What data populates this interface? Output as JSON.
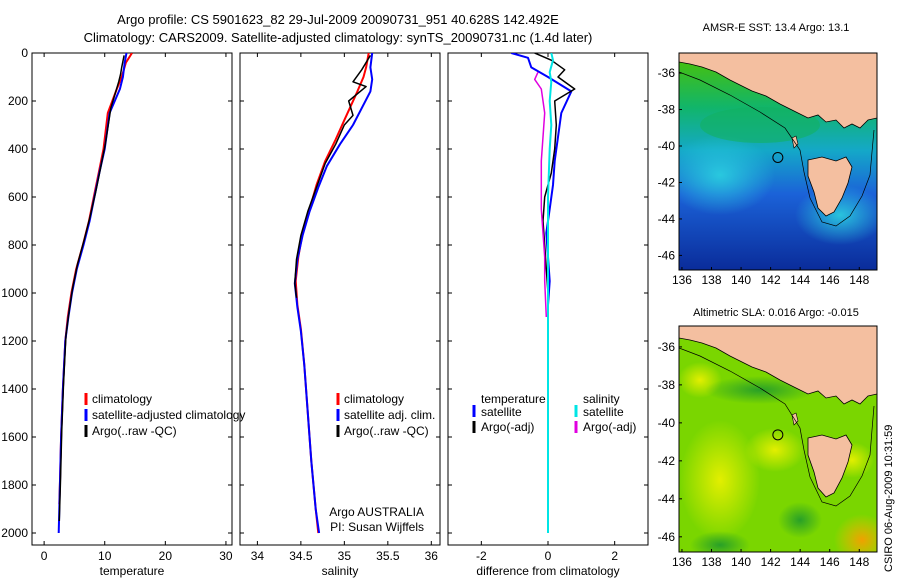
{
  "header": {
    "line1": "Argo profile: CS 5901623_82 29-Jul-2009 20090731_951 40.628S 142.492E",
    "line2": "Climatology: CARS2009. Satellite-adjusted climatology: synTS_20090731.nc (1.4d later)"
  },
  "side_label": "CSIRO 06-Aug-2009 10:31:59",
  "colors": {
    "climatology": "#ff0000",
    "satellite": "#0000ff",
    "argo": "#000000",
    "satellite_salinity": "#00e5e5",
    "argo_salinity": "#e000e0",
    "land": "#f4bfa0"
  },
  "chart_data": [
    {
      "id": "temperature",
      "type": "line",
      "xlabel": "temperature",
      "ylabel": "",
      "xlim": [
        -2,
        31
      ],
      "ylim": [
        2050,
        0
      ],
      "xticks": [
        0,
        10,
        20,
        30
      ],
      "yticks": [
        0,
        200,
        400,
        600,
        800,
        1000,
        1200,
        1400,
        1600,
        1800,
        2000
      ],
      "legend": {
        "placement": "lower-right",
        "entries": [
          "climatology",
          "satellite-adjusted climatology",
          "Argo(..raw -QC)"
        ]
      },
      "series": [
        {
          "name": "climatology",
          "color": "#ff0000",
          "width": 2,
          "points": [
            [
              14.5,
              0
            ],
            [
              13.5,
              40
            ],
            [
              12.8,
              100
            ],
            [
              12.0,
              150
            ],
            [
              10.5,
              250
            ],
            [
              9.8,
              400
            ],
            [
              9.0,
              500
            ],
            [
              8.2,
              600
            ],
            [
              7.4,
              700
            ],
            [
              6.4,
              800
            ],
            [
              5.3,
              900
            ],
            [
              4.5,
              1000
            ],
            [
              3.9,
              1100
            ],
            [
              3.5,
              1200
            ],
            [
              3.1,
              1400
            ],
            [
              2.8,
              1600
            ],
            [
              2.6,
              1800
            ],
            [
              2.5,
              1880
            ]
          ]
        },
        {
          "name": "satellite-adjusted climatology",
          "color": "#0000ff",
          "width": 2,
          "points": [
            [
              13.6,
              0
            ],
            [
              13.3,
              40
            ],
            [
              13.0,
              100
            ],
            [
              12.5,
              150
            ],
            [
              10.8,
              250
            ],
            [
              10.0,
              400
            ],
            [
              9.1,
              500
            ],
            [
              8.3,
              600
            ],
            [
              7.5,
              700
            ],
            [
              6.5,
              800
            ],
            [
              5.4,
              900
            ],
            [
              4.6,
              1000
            ],
            [
              4.0,
              1100
            ],
            [
              3.5,
              1200
            ],
            [
              3.1,
              1400
            ],
            [
              2.8,
              1600
            ],
            [
              2.6,
              1800
            ],
            [
              2.4,
              2000
            ]
          ]
        },
        {
          "name": "Argo(..raw -QC)",
          "color": "#000000",
          "width": 1.5,
          "points": [
            [
              13.2,
              10
            ],
            [
              12.8,
              60
            ],
            [
              12.6,
              90
            ],
            [
              12.3,
              120
            ],
            [
              11.0,
              230
            ],
            [
              10.1,
              380
            ],
            [
              9.3,
              480
            ],
            [
              8.5,
              580
            ],
            [
              7.6,
              680
            ],
            [
              6.6,
              780
            ],
            [
              5.5,
              880
            ],
            [
              4.7,
              980
            ],
            [
              4.1,
              1080
            ],
            [
              3.6,
              1180
            ],
            [
              3.2,
              1380
            ],
            [
              2.9,
              1580
            ],
            [
              2.7,
              1780
            ],
            [
              2.5,
              1950
            ]
          ]
        }
      ]
    },
    {
      "id": "salinity",
      "type": "line",
      "xlabel": "salinity",
      "ylabel": "",
      "xlim": [
        33.8,
        36.1
      ],
      "ylim": [
        2050,
        0
      ],
      "xticks": [
        34,
        34.5,
        35,
        35.5,
        36
      ],
      "yticks": [
        0,
        200,
        400,
        600,
        800,
        1000,
        1200,
        1400,
        1600,
        1800,
        2000
      ],
      "legend": {
        "placement": "lower-right",
        "entries": [
          "climatology",
          "satellite adj. clim.",
          "Argo(..raw -QC)"
        ]
      },
      "annotation": [
        "Argo AUSTRALIA",
        "PI: Susan Wijffels"
      ],
      "series": [
        {
          "name": "climatology",
          "color": "#ff0000",
          "width": 2,
          "points": [
            [
              35.28,
              0
            ],
            [
              35.25,
              60
            ],
            [
              35.22,
              100
            ],
            [
              35.15,
              160
            ],
            [
              35.0,
              280
            ],
            [
              34.9,
              360
            ],
            [
              34.78,
              450
            ],
            [
              34.68,
              550
            ],
            [
              34.6,
              650
            ],
            [
              34.52,
              750
            ],
            [
              34.47,
              850
            ],
            [
              34.44,
              950
            ],
            [
              34.46,
              1050
            ],
            [
              34.5,
              1150
            ],
            [
              34.54,
              1300
            ],
            [
              34.58,
              1500
            ],
            [
              34.62,
              1700
            ],
            [
              34.67,
              1900
            ],
            [
              34.7,
              2000
            ]
          ]
        },
        {
          "name": "satellite adj. clim.",
          "color": "#0000ff",
          "width": 2,
          "points": [
            [
              35.32,
              0
            ],
            [
              35.3,
              60
            ],
            [
              35.32,
              110
            ],
            [
              35.3,
              160
            ],
            [
              35.1,
              300
            ],
            [
              34.95,
              380
            ],
            [
              34.8,
              470
            ],
            [
              34.7,
              560
            ],
            [
              34.6,
              660
            ],
            [
              34.52,
              760
            ],
            [
              34.46,
              860
            ],
            [
              34.43,
              960
            ],
            [
              34.46,
              1060
            ],
            [
              34.5,
              1160
            ],
            [
              34.54,
              1300
            ],
            [
              34.58,
              1500
            ],
            [
              34.62,
              1700
            ],
            [
              34.67,
              1900
            ],
            [
              34.71,
              2000
            ]
          ]
        },
        {
          "name": "Argo(..raw -QC)",
          "color": "#000000",
          "width": 1.5,
          "points": [
            [
              35.3,
              10
            ],
            [
              35.2,
              70
            ],
            [
              35.1,
              120
            ],
            [
              35.25,
              140
            ],
            [
              35.05,
              200
            ],
            [
              35.1,
              260
            ],
            [
              35.0,
              300
            ],
            [
              34.9,
              380
            ],
            [
              34.78,
              460
            ],
            [
              34.68,
              560
            ],
            [
              34.58,
              660
            ],
            [
              34.5,
              760
            ],
            [
              34.45,
              860
            ],
            [
              34.43,
              960
            ],
            [
              34.45,
              1020
            ]
          ]
        }
      ]
    },
    {
      "id": "difference",
      "type": "line",
      "xlabel": "difference from climatology",
      "ylabel": "",
      "xlim": [
        -3,
        3
      ],
      "ylim": [
        2050,
        0
      ],
      "xticks": [
        -2,
        0,
        2
      ],
      "yticks": [
        0,
        200,
        400,
        600,
        800,
        1000,
        1200,
        1400,
        1600,
        1800,
        2000
      ],
      "legend": {
        "placement": "lower-center",
        "headers": [
          "temperature",
          "salinity"
        ],
        "temperature_entries": [
          "satellite",
          "Argo(-adj)"
        ],
        "salinity_entries": [
          "satellite",
          "Argo(-adj)"
        ]
      },
      "series": [
        {
          "name": "temperature satellite",
          "color": "#0000ff",
          "width": 2,
          "points": [
            [
              -1.1,
              0
            ],
            [
              -0.6,
              20
            ],
            [
              -0.5,
              60
            ],
            [
              0.0,
              100
            ],
            [
              0.7,
              160
            ],
            [
              0.4,
              250
            ],
            [
              0.3,
              350
            ],
            [
              0.2,
              450
            ],
            [
              0.15,
              550
            ],
            [
              0.05,
              650
            ],
            [
              -0.05,
              750
            ],
            [
              0.0,
              850
            ],
            [
              0.05,
              950
            ],
            [
              0.0,
              1050
            ],
            [
              0.0,
              1200
            ],
            [
              0.0,
              1400
            ],
            [
              0.0,
              1600
            ],
            [
              0.0,
              1800
            ]
          ]
        },
        {
          "name": "temperature Argo(-adj)",
          "color": "#000000",
          "width": 1.5,
          "points": [
            [
              -0.4,
              0
            ],
            [
              0.1,
              30
            ],
            [
              0.5,
              70
            ],
            [
              0.3,
              100
            ],
            [
              0.8,
              150
            ],
            [
              0.2,
              200
            ],
            [
              0.25,
              300
            ],
            [
              0.2,
              400
            ],
            [
              0.1,
              500
            ],
            [
              -0.1,
              600
            ],
            [
              -0.15,
              700
            ],
            [
              -0.1,
              800
            ],
            [
              -0.05,
              900
            ],
            [
              0.0,
              1000
            ]
          ]
        },
        {
          "name": "salinity satellite",
          "color": "#00e5e5",
          "width": 2,
          "points": [
            [
              0.1,
              0
            ],
            [
              0.15,
              30
            ],
            [
              0.05,
              80
            ],
            [
              0.1,
              120
            ],
            [
              0.05,
              200
            ],
            [
              0.1,
              300
            ],
            [
              0.05,
              400
            ],
            [
              0.0,
              600
            ],
            [
              0.0,
              800
            ],
            [
              0.0,
              1000
            ],
            [
              0.0,
              1200
            ],
            [
              0.0,
              1400
            ],
            [
              0.0,
              1600
            ],
            [
              0.0,
              1800
            ],
            [
              0.0,
              2000
            ]
          ]
        },
        {
          "name": "salinity Argo(-adj)",
          "color": "#e000e0",
          "width": 1.5,
          "points": [
            [
              -0.3,
              80
            ],
            [
              -0.4,
              110
            ],
            [
              -0.2,
              150
            ],
            [
              -0.1,
              250
            ],
            [
              -0.15,
              350
            ],
            [
              -0.2,
              450
            ],
            [
              -0.2,
              550
            ],
            [
              -0.2,
              650
            ],
            [
              -0.15,
              750
            ],
            [
              -0.1,
              850
            ],
            [
              -0.1,
              950
            ],
            [
              -0.05,
              1100
            ]
          ]
        }
      ]
    },
    {
      "id": "sst-map",
      "type": "heatmap",
      "title": "AMSR-E SST: 13.4 Argo: 13.1",
      "xlim": [
        135.8,
        149.2
      ],
      "ylim": [
        -46.8,
        -34.9
      ],
      "xticks": [
        136,
        138,
        140,
        142,
        144,
        146,
        148
      ],
      "xticklabels": [
        "136",
        "138",
        "140",
        "142",
        "144",
        "146",
        "148"
      ],
      "yticks": [
        -36,
        -38,
        -40,
        -42,
        -44,
        -46
      ],
      "marker": {
        "lon": 142.49,
        "lat": -40.63
      }
    },
    {
      "id": "sla-map",
      "type": "heatmap",
      "title": "Altimetric SLA: 0.016 Argo: -0.015",
      "xlim": [
        135.8,
        149.2
      ],
      "ylim": [
        -46.8,
        -34.9
      ],
      "xticks": [
        136,
        138,
        140,
        142,
        144,
        146,
        148
      ],
      "xticklabels": [
        "136",
        "138",
        "140",
        "142",
        "144",
        "146",
        "148"
      ],
      "yticks": [
        -36,
        -38,
        -40,
        -42,
        -44,
        -46
      ],
      "marker": {
        "lon": 142.49,
        "lat": -40.63
      }
    }
  ]
}
